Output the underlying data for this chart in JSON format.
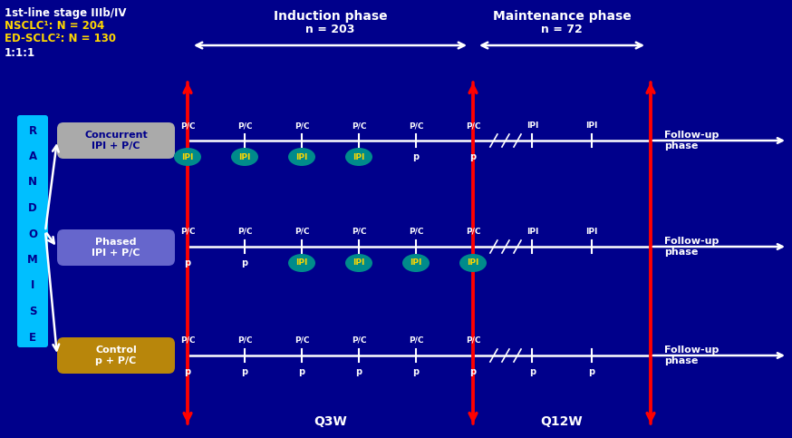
{
  "bg_color": "#00008B",
  "title_line1": "1st-line stage IIIb/IV",
  "title_nsclc": "NSCLC¹: N = 204",
  "title_sclc": "ED-SCLC²: N = 130",
  "ratio": "1:1:1",
  "randomise_letters": [
    "R",
    "A",
    "N",
    "D",
    "O",
    "M",
    "I",
    "S",
    "E"
  ],
  "randomise_bg": "#00BFFF",
  "induction_label": "Induction phase",
  "induction_n": "n = 203",
  "maintenance_label": "Maintenance phase",
  "maintenance_n": "n = 72",
  "q3w_label": "Q3W",
  "q12w_label": "Q12W",
  "concurrent_label": "Concurrent\nIPI + P/C",
  "concurrent_color": "#AAAAAA",
  "phased_label": "Phased\nIPI + P/C",
  "phased_color": "#6666CC",
  "control_label": "Control\np + P/C",
  "control_color": "#B8860B",
  "ipi_circle_color": "#008B8B",
  "ipi_text_color": "#FFD700",
  "white": "#FFFFFF",
  "yellow": "#FFD700",
  "red": "#FF0000",
  "cyan": "#00BFFF",
  "navy": "#00008B",
  "followup_label": "Follow-up\nphase",
  "fig_w": 8.74,
  "fig_h": 4.83,
  "dpi": 100
}
